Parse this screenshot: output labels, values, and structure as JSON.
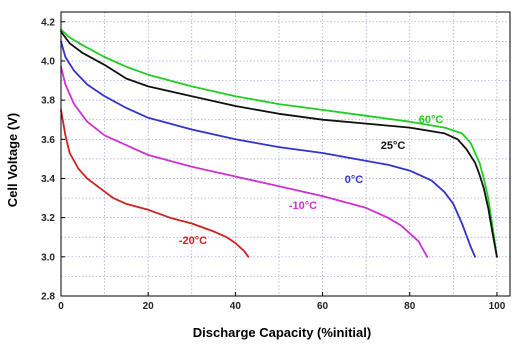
{
  "chart_data": {
    "type": "line",
    "xlabel": "Discharge Capacity (%initial)",
    "ylabel": "Cell Voltage (V)",
    "xlim": [
      0,
      103
    ],
    "ylim": [
      2.8,
      4.25
    ],
    "x_ticks": [
      0,
      20,
      40,
      60,
      80,
      100
    ],
    "y_ticks": [
      2.8,
      3.0,
      3.2,
      3.4,
      3.6,
      3.8,
      4.0,
      4.2
    ],
    "x_tick_labels": [
      "0",
      "20",
      "40",
      "60",
      "80",
      "100"
    ],
    "y_tick_labels": [
      "2.8",
      "3.0",
      "3.2",
      "3.4",
      "3.6",
      "3.8",
      "4.0",
      "4.2"
    ],
    "grid": true,
    "series": [
      {
        "name": "60°C",
        "color": "#22cc22",
        "x": [
          0,
          2,
          5,
          10,
          15,
          20,
          30,
          40,
          50,
          60,
          70,
          80,
          88,
          92,
          94,
          96,
          97,
          98,
          99,
          100
        ],
        "y": [
          4.16,
          4.12,
          4.08,
          4.02,
          3.97,
          3.93,
          3.87,
          3.82,
          3.78,
          3.75,
          3.72,
          3.69,
          3.66,
          3.63,
          3.58,
          3.48,
          3.4,
          3.3,
          3.15,
          3.0
        ]
      },
      {
        "name": "25°C",
        "color": "#111111",
        "x": [
          0,
          2,
          5,
          10,
          15,
          20,
          30,
          40,
          50,
          60,
          70,
          80,
          88,
          91,
          93,
          95,
          96,
          97,
          98,
          99,
          100
        ],
        "y": [
          4.15,
          4.09,
          4.04,
          3.98,
          3.91,
          3.87,
          3.82,
          3.77,
          3.73,
          3.7,
          3.68,
          3.66,
          3.63,
          3.6,
          3.55,
          3.48,
          3.42,
          3.35,
          3.25,
          3.12,
          3.0
        ]
      },
      {
        "name": "0°C",
        "color": "#3333cc",
        "x": [
          0,
          1,
          3,
          6,
          10,
          15,
          20,
          30,
          40,
          50,
          60,
          70,
          75,
          80,
          85,
          88,
          90,
          92,
          93,
          94,
          95
        ],
        "y": [
          4.1,
          4.02,
          3.95,
          3.88,
          3.82,
          3.76,
          3.71,
          3.65,
          3.6,
          3.56,
          3.53,
          3.49,
          3.47,
          3.44,
          3.39,
          3.33,
          3.27,
          3.17,
          3.11,
          3.05,
          3.0
        ]
      },
      {
        "name": "-10°C",
        "color": "#cc33cc",
        "x": [
          0,
          1,
          3,
          6,
          10,
          15,
          20,
          30,
          40,
          50,
          60,
          70,
          75,
          78,
          80,
          82,
          83,
          84
        ],
        "y": [
          3.97,
          3.88,
          3.78,
          3.69,
          3.62,
          3.57,
          3.52,
          3.46,
          3.41,
          3.36,
          3.31,
          3.25,
          3.2,
          3.16,
          3.12,
          3.08,
          3.04,
          3.0
        ]
      },
      {
        "name": "-20°C",
        "color": "#cc2222",
        "x": [
          0,
          1,
          2,
          4,
          6,
          9,
          12,
          15,
          20,
          25,
          30,
          35,
          38,
          40,
          42,
          43
        ],
        "y": [
          3.75,
          3.62,
          3.53,
          3.45,
          3.4,
          3.35,
          3.3,
          3.27,
          3.24,
          3.2,
          3.17,
          3.13,
          3.1,
          3.07,
          3.03,
          3.0
        ]
      }
    ]
  }
}
